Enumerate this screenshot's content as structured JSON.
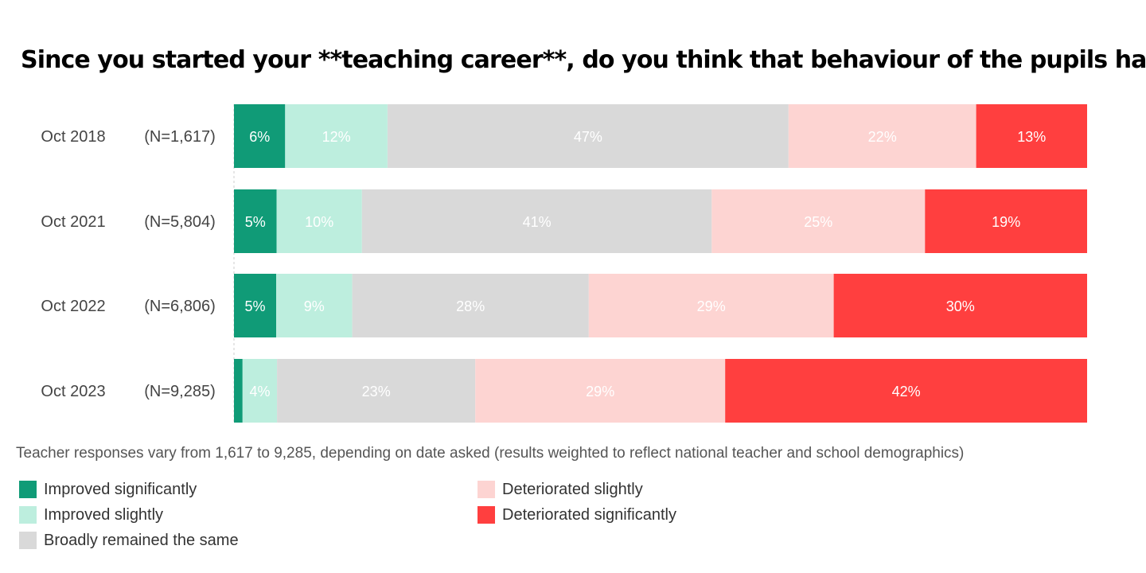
{
  "chart_data": {
    "type": "bar",
    "orientation": "horizontal",
    "stacked": true,
    "title": "Since you started your **teaching career**, do you think that behaviour of the pupils has:",
    "categories": [
      "Oct 2018",
      "Oct 2021",
      "Oct 2022",
      "Oct 2023"
    ],
    "sample_sizes": [
      "(N=1,617)",
      "(N=5,804)",
      "(N=6,806)",
      "(N=9,285)"
    ],
    "series": [
      {
        "name": "Improved significantly",
        "color": "#109B77",
        "label_color": "#ffffff",
        "values": [
          6,
          5,
          5,
          1
        ],
        "labels": [
          "6%",
          "5%",
          "5%",
          ""
        ]
      },
      {
        "name": "Improved slightly",
        "color": "#BDEEDE",
        "label_color": "#ffffff",
        "values": [
          12,
          10,
          9,
          4
        ],
        "labels": [
          "12%",
          "10%",
          "9%",
          "4%"
        ]
      },
      {
        "name": "Broadly remained the same",
        "color": "#D9D9D9",
        "label_color": "#ffffff",
        "values": [
          47,
          41,
          28,
          23
        ],
        "labels": [
          "47%",
          "41%",
          "28%",
          "23%"
        ]
      },
      {
        "name": "Deteriorated slightly",
        "color": "#FDD4D2",
        "label_color": "#ffffff",
        "values": [
          22,
          25,
          29,
          29
        ],
        "labels": [
          "22%",
          "25%",
          "29%",
          "29%"
        ]
      },
      {
        "name": "Deteriorated significantly",
        "color": "#FF3F3F",
        "label_color": "#ffffff",
        "values": [
          13,
          19,
          30,
          42
        ],
        "labels": [
          "13%",
          "19%",
          "30%",
          "42%"
        ]
      }
    ],
    "legend_placement": "bottom",
    "grid": false
  },
  "footnote": "Teacher responses vary from 1,617 to 9,285, depending on date asked (results weighted to reflect national teacher and school demographics)"
}
